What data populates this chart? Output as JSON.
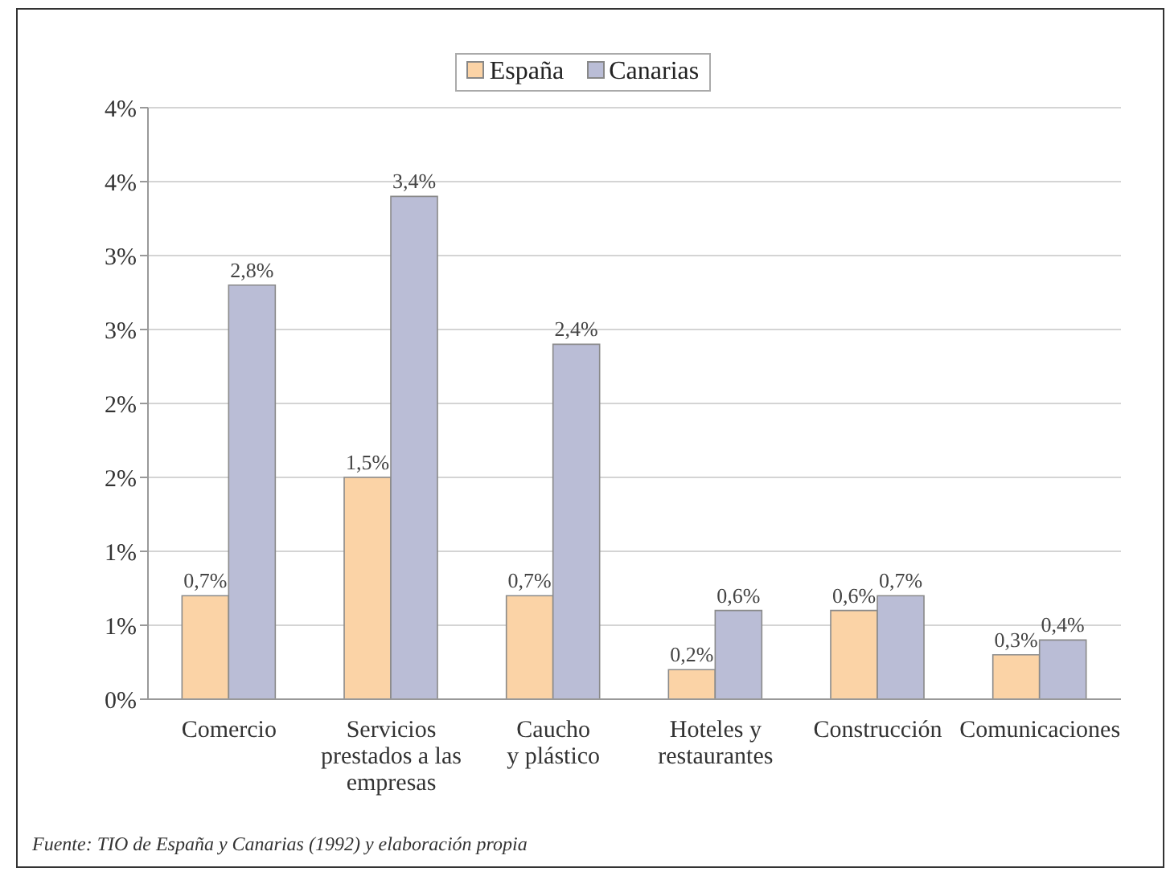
{
  "chart_data": {
    "type": "bar",
    "categories": [
      "Comercio",
      "Servicios\nprestados a las\nempresas",
      "Caucho\ny plástico",
      "Hoteles y\nrestaurantes",
      "Construcción",
      "Comunicaciones"
    ],
    "series": [
      {
        "name": "España",
        "color": "#fbd3a6",
        "values": [
          0.7,
          1.5,
          0.7,
          0.2,
          0.6,
          0.3
        ],
        "value_labels": [
          "0,7%",
          "1,5%",
          "0,7%",
          "0,2%",
          "0,6%",
          "0,3%"
        ]
      },
      {
        "name": "Canarias",
        "color": "#babdd6",
        "values": [
          2.8,
          3.4,
          2.4,
          0.6,
          0.7,
          0.4
        ],
        "value_labels": [
          "2,8%",
          "3,4%",
          "2,4%",
          "0,6%",
          "0,7%",
          "0,4%"
        ]
      }
    ],
    "ylim": [
      0,
      4
    ],
    "yticks": [
      {
        "value": 0,
        "label": "0%"
      },
      {
        "value": 0.5,
        "label": "1%"
      },
      {
        "value": 1,
        "label": "1%"
      },
      {
        "value": 1.5,
        "label": "2%"
      },
      {
        "value": 2,
        "label": "2%"
      },
      {
        "value": 2.5,
        "label": "3%"
      },
      {
        "value": 3,
        "label": "3%"
      },
      {
        "value": 3.5,
        "label": "4%"
      },
      {
        "value": 4,
        "label": "4%"
      }
    ],
    "grid": "y",
    "legend": "top",
    "annotations": [
      "Fuente: TIO de España y Canarias (1992) y elaboración propia"
    ]
  }
}
